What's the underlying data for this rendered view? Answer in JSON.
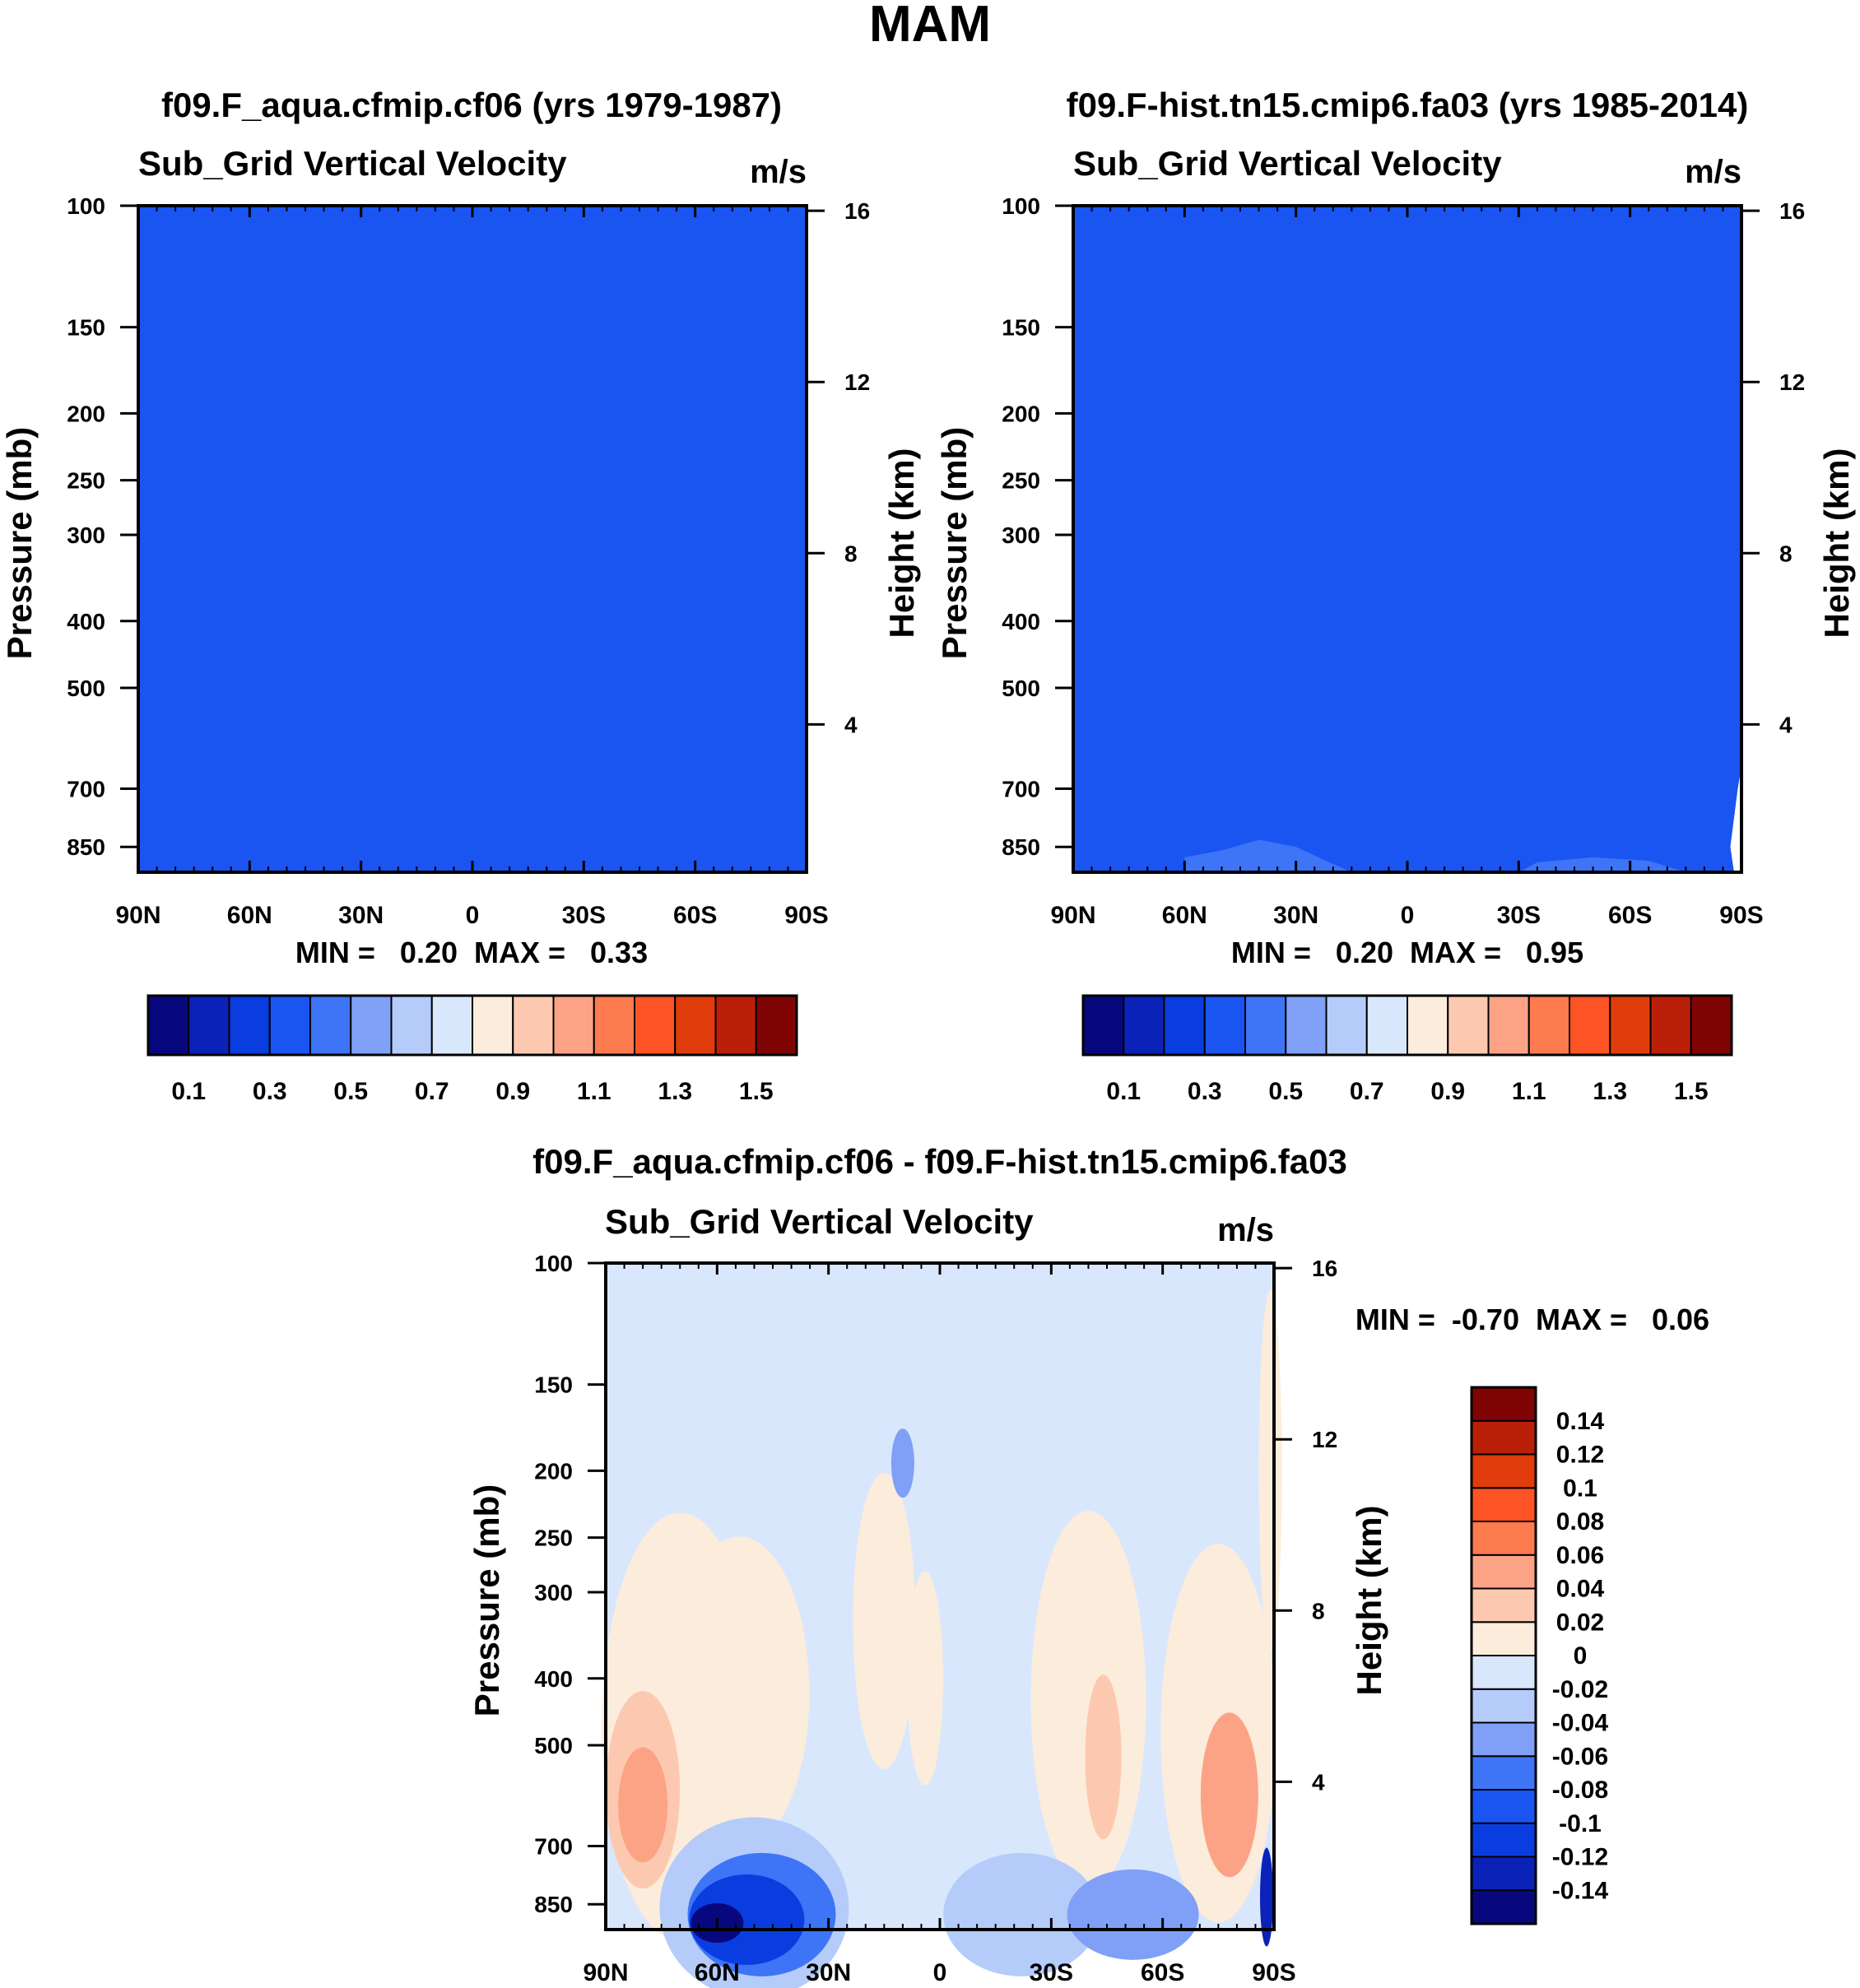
{
  "figure": {
    "title": "MAM"
  },
  "colors": {
    "panel_fill": "#0a3de0",
    "abs_palette": [
      "#08087e",
      "#0a22b8",
      "#0a3de0",
      "#1a55f2",
      "#3e74f6",
      "#7fa0f6",
      "#b5ccfa",
      "#d9e7fc",
      "#fcecdc",
      "#fcc9b0",
      "#fca385",
      "#fd7b4f",
      "#fd5325",
      "#e03c0c",
      "#ba2008",
      "#800404"
    ],
    "diff_palette": [
      "#08087e",
      "#0a22b8",
      "#0a3de0",
      "#1a55f2",
      "#3e74f6",
      "#7fa0f6",
      "#b5ccfa",
      "#d9e7fc",
      "#fcecdc",
      "#fcc9b0",
      "#fca385",
      "#fd7b4f",
      "#fd5325",
      "#e03c0c",
      "#ba2008",
      "#800404"
    ]
  },
  "chart_data": [
    {
      "type": "heatmap",
      "case_title": "f09.F_aqua.cfmip.cf06 (yrs 1979-1987)",
      "variable": "Sub_Grid Vertical Velocity",
      "units": "m/s",
      "ylabel_left": "Pressure (mb)",
      "ylabel_right": "Height (km)",
      "x_ticks": [
        "90N",
        "60N",
        "30N",
        "0",
        "30S",
        "60S",
        "90S"
      ],
      "x_range_lat": [
        90,
        -90
      ],
      "y_ticks_pressure": [
        100,
        150,
        200,
        250,
        300,
        400,
        500,
        700,
        850
      ],
      "y_range_pressure": [
        100,
        925
      ],
      "y_ticks_height": [
        16,
        12,
        8,
        4
      ],
      "stats_label": "MIN =   0.20  MAX =   0.33",
      "min": 0.2,
      "max": 0.33,
      "field_note": "uniform 0.2-0.4 band",
      "colorbar_levels": [
        0.1,
        0.2,
        0.3,
        0.4,
        0.5,
        0.6,
        0.7,
        0.8,
        0.9,
        1.0,
        1.1,
        1.2,
        1.3,
        1.4,
        1.5
      ],
      "colorbar_labels": [
        "0.1",
        "0.3",
        "0.5",
        "0.7",
        "0.9",
        "1.1",
        "1.3",
        "1.5"
      ]
    },
    {
      "type": "heatmap",
      "case_title": "f09.F-hist.tn15.cmip6.fa03 (yrs 1985-2014)",
      "variable": "Sub_Grid Vertical Velocity",
      "units": "m/s",
      "ylabel_left": "Pressure (mb)",
      "ylabel_right": "Height (km)",
      "x_ticks": [
        "90N",
        "60N",
        "30N",
        "0",
        "30S",
        "60S",
        "90S"
      ],
      "x_range_lat": [
        90,
        -90
      ],
      "y_ticks_pressure": [
        100,
        150,
        200,
        250,
        300,
        400,
        500,
        700,
        850
      ],
      "y_range_pressure": [
        100,
        925
      ],
      "y_ticks_height": [
        16,
        12,
        8,
        4
      ],
      "stats_label": "MIN =   0.20  MAX =   0.95",
      "min": 0.2,
      "max": 0.95,
      "colorbar_levels": [
        0.1,
        0.2,
        0.3,
        0.4,
        0.5,
        0.6,
        0.7,
        0.8,
        0.9,
        1.0,
        1.1,
        1.2,
        1.3,
        1.4,
        1.5
      ],
      "colorbar_labels": [
        "0.1",
        "0.3",
        "0.5",
        "0.7",
        "0.9",
        "1.1",
        "1.3",
        "1.5"
      ]
    },
    {
      "type": "heatmap",
      "case_title": "f09.F_aqua.cfmip.cf06 - f09.F-hist.tn15.cmip6.fa03",
      "variable": "Sub_Grid Vertical Velocity",
      "units": "m/s",
      "ylabel_left": "Pressure (mb)",
      "ylabel_right": "Height (km)",
      "x_ticks": [
        "90N",
        "60N",
        "30N",
        "0",
        "30S",
        "60S",
        "90S"
      ],
      "x_range_lat": [
        90,
        -90
      ],
      "y_ticks_pressure": [
        100,
        150,
        200,
        250,
        300,
        400,
        500,
        700,
        850
      ],
      "y_range_pressure": [
        100,
        925
      ],
      "y_ticks_height": [
        16,
        12,
        8,
        4
      ],
      "stats_label": "MIN =  -0.70  MAX =   0.06",
      "min": -0.7,
      "max": 0.06,
      "colorbar_levels": [
        -0.14,
        -0.12,
        -0.1,
        -0.08,
        -0.06,
        -0.04,
        -0.02,
        0,
        0.02,
        0.04,
        0.06,
        0.08,
        0.1,
        0.12,
        0.14
      ],
      "colorbar_labels": [
        "-0.14",
        "-0.12",
        "-0.1",
        "-0.08",
        "-0.06",
        "-0.04",
        "-0.02",
        "0",
        "0.02",
        "0.04",
        "0.06",
        "0.08",
        "0.1",
        "0.12",
        "0.14"
      ]
    }
  ]
}
